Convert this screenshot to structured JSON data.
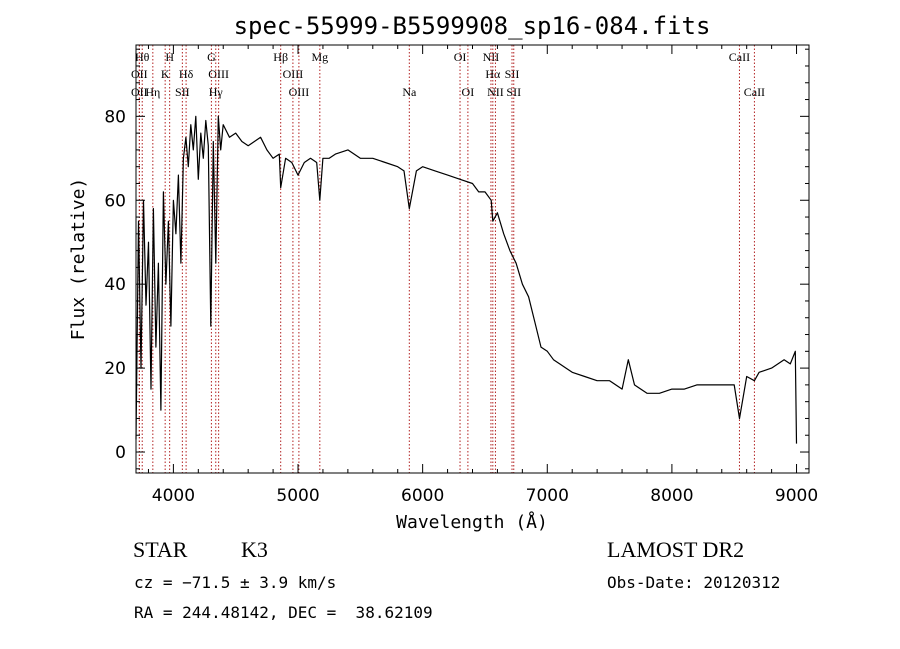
{
  "chart_data": {
    "type": "line",
    "title": "spec-55999-B5599908_sp16-084.fits",
    "xlabel": "Wavelength (Å)",
    "ylabel": "Flux (relative)",
    "xlim": [
      3700,
      9100
    ],
    "ylim": [
      -5,
      97
    ],
    "xticks": [
      4000,
      5000,
      6000,
      7000,
      8000,
      9000
    ],
    "yticks": [
      0,
      20,
      40,
      60,
      80
    ],
    "grid": false,
    "line_color": "#000000",
    "marker_color": "#b22222",
    "series": [
      {
        "x": [
          3700,
          3720,
          3740,
          3760,
          3780,
          3800,
          3820,
          3840,
          3860,
          3880,
          3900,
          3920,
          3940,
          3960,
          3980,
          4000,
          4020,
          4040,
          4060,
          4080,
          4100,
          4120,
          4140,
          4160,
          4180,
          4200,
          4220,
          4240,
          4260,
          4280,
          4300,
          4320,
          4340,
          4360,
          4380,
          4400,
          4450,
          4500,
          4550,
          4600,
          4650,
          4700,
          4750,
          4800,
          4850,
          4861,
          4900,
          4950,
          5000,
          5050,
          5100,
          5150,
          5175,
          5200,
          5250,
          5300,
          5400,
          5500,
          5600,
          5700,
          5800,
          5850,
          5893,
          5950,
          6000,
          6100,
          6200,
          6300,
          6400,
          6450,
          6500,
          6550,
          6563,
          6600,
          6650,
          6700,
          6750,
          6800,
          6850,
          6900,
          6950,
          7000,
          7050,
          7100,
          7150,
          7200,
          7300,
          7400,
          7500,
          7600,
          7650,
          7700,
          7800,
          7900,
          8000,
          8100,
          8200,
          8300,
          8400,
          8500,
          8542,
          8600,
          8662,
          8700,
          8800,
          8900,
          8950,
          8990,
          9000
        ],
        "y": [
          3,
          55,
          20,
          60,
          35,
          50,
          15,
          58,
          25,
          45,
          10,
          62,
          40,
          55,
          30,
          60,
          52,
          66,
          45,
          70,
          75,
          68,
          78,
          72,
          80,
          65,
          76,
          70,
          79,
          73,
          30,
          74,
          45,
          80,
          72,
          78,
          75,
          76,
          74,
          73,
          74,
          75,
          72,
          70,
          71,
          63,
          70,
          69,
          66,
          69,
          70,
          69,
          60,
          70,
          70,
          71,
          72,
          70,
          70,
          69,
          68,
          67,
          58,
          67,
          68,
          67,
          66,
          65,
          64,
          62,
          62,
          60,
          55,
          57,
          52,
          48,
          45,
          40,
          37,
          31,
          25,
          24,
          22,
          21,
          20,
          19,
          18,
          17,
          17,
          15,
          22,
          16,
          14,
          14,
          15,
          15,
          16,
          16,
          16,
          16,
          8,
          18,
          17,
          19,
          20,
          22,
          21,
          24,
          2
        ]
      }
    ],
    "lines_top": [
      {
        "x": 3750,
        "label": "Hθ"
      },
      {
        "x": 3970,
        "label": "H"
      },
      {
        "x": 4305,
        "label": "G"
      },
      {
        "x": 4861,
        "label": "Hβ"
      },
      {
        "x": 5175,
        "label": "Mg"
      },
      {
        "x": 6300,
        "label": "OI"
      },
      {
        "x": 6548,
        "label": "NII"
      },
      {
        "x": 8542,
        "label": "CaII"
      }
    ],
    "lines_mid": [
      {
        "x": 3727,
        "label": "OII"
      },
      {
        "x": 3934,
        "label": "K"
      },
      {
        "x": 4102,
        "label": "Hδ"
      },
      {
        "x": 4363,
        "label": "OIII"
      },
      {
        "x": 4959,
        "label": "OIII"
      },
      {
        "x": 6563,
        "label": "Hα"
      },
      {
        "x": 6717,
        "label": "SII"
      }
    ],
    "lines_low": [
      {
        "x": 3727,
        "label": "OII"
      },
      {
        "x": 3835,
        "label": "Hη"
      },
      {
        "x": 4072,
        "label": "SII"
      },
      {
        "x": 4340,
        "label": "Hγ"
      },
      {
        "x": 5007,
        "label": "OIII"
      },
      {
        "x": 5893,
        "label": "Na"
      },
      {
        "x": 6363,
        "label": "OI"
      },
      {
        "x": 6584,
        "label": "NII"
      },
      {
        "x": 6731,
        "label": "SII"
      },
      {
        "x": 8662,
        "label": "CaII"
      }
    ]
  },
  "footer": {
    "object_class": "STAR",
    "subclass": "K3",
    "cz": "cz = −71.5 ± 3.9 km/s",
    "coords": "RA = 244.48142, DEC =  38.62109",
    "survey": "LAMOST DR2",
    "obs_date": "Obs-Date: 20120312"
  }
}
